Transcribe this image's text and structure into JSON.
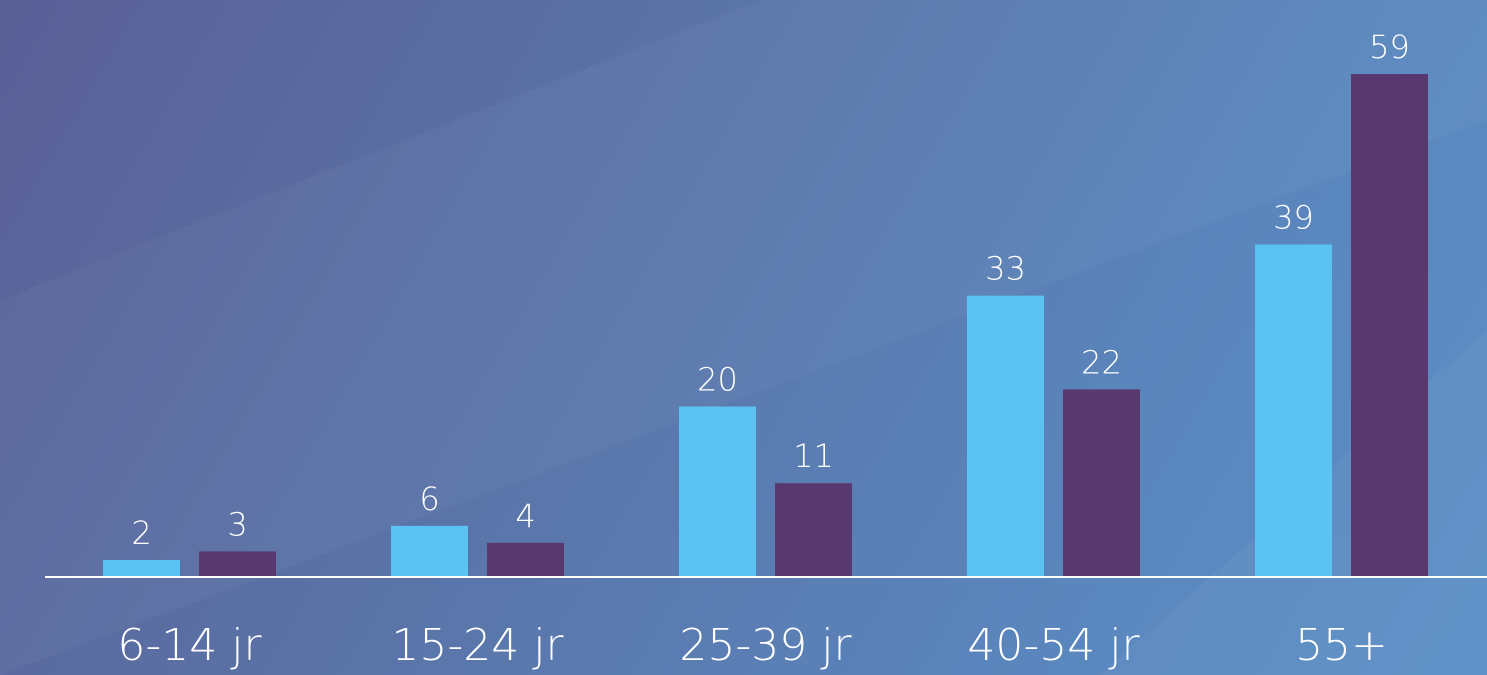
{
  "chart_data": {
    "type": "bar",
    "categories": [
      "6-14 jr",
      "15-24 jr",
      "25-39 jr",
      "40-54 jr",
      "55+"
    ],
    "series": [
      {
        "values": [
          2,
          6,
          20,
          33,
          39
        ],
        "color": "#5bc3f2"
      },
      {
        "values": [
          3,
          4,
          11,
          22,
          59
        ],
        "color": "#59386f"
      }
    ],
    "ylim": [
      0,
      59
    ],
    "grid": false,
    "legend": "none"
  }
}
